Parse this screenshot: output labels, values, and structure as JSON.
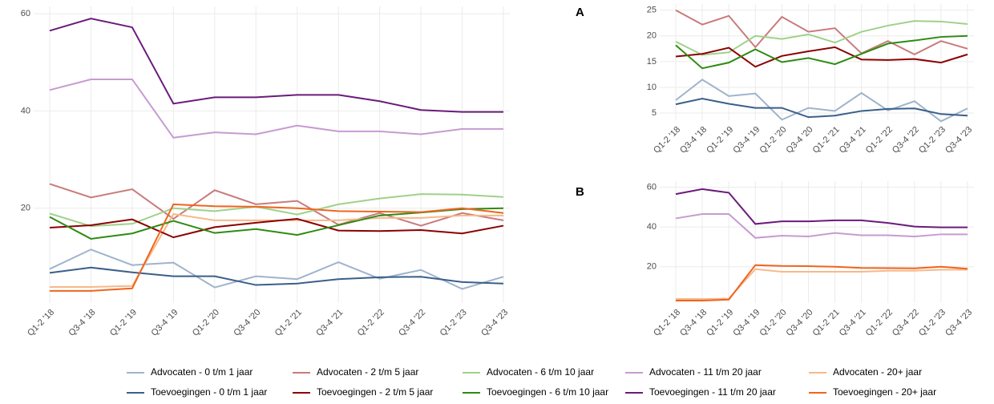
{
  "chart_data": [
    {
      "type": "line",
      "categories": [
        "Q1-2 '18",
        "Q3-4 '18",
        "Q1-2 '19",
        "Q3-4 '19",
        "Q1-2 '20",
        "Q3-4 '20",
        "Q1-2 '21",
        "Q3-4 '21",
        "Q1-2 '22",
        "Q3-4 '22",
        "Q1-2 '23",
        "Q3-4 '23"
      ],
      "ylim": [
        0.5,
        61.5
      ],
      "yticks": [
        20,
        40,
        60
      ],
      "grid": true,
      "legend": "bottom",
      "series": [
        {
          "name": "Advocaten - 0 t/m 1 jaar",
          "color": "#9fb3cc",
          "values": [
            7.5,
            11.5,
            8.3,
            8.8,
            3.7,
            6.0,
            5.4,
            8.9,
            5.5,
            7.3,
            3.4,
            5.9
          ]
        },
        {
          "name": "Advocaten - 2 t/m 5 jaar",
          "color": "#c97b7b",
          "values": [
            25,
            22.2,
            23.9,
            17.8,
            23.7,
            20.8,
            21.5,
            16.6,
            19.0,
            16.4,
            19.0,
            17.5
          ]
        },
        {
          "name": "Advocaten - 6 t/m 10 jaar",
          "color": "#9fd18a",
          "values": [
            18.9,
            16.3,
            16.8,
            20.0,
            19.4,
            20.3,
            18.7,
            20.8,
            22.0,
            22.9,
            22.8,
            22.3
          ]
        },
        {
          "name": "Advocaten - 11 t/m 20 jaar",
          "color": "#c79bd1",
          "values": [
            44.3,
            46.5,
            46.5,
            34.5,
            35.6,
            35.2,
            37.0,
            35.8,
            35.8,
            35.2,
            36.3,
            36.3
          ]
        },
        {
          "name": "Advocaten - 20+ jaar",
          "color": "#f6b98a",
          "values": [
            3.8,
            3.8,
            4.0,
            18.8,
            17.5,
            17.5,
            17.5,
            17.5,
            18.0,
            18.0,
            18.5,
            18.5
          ]
        },
        {
          "name": "Toevoegingen - 0 t/m 1 jaar",
          "color": "#3a5f8a",
          "values": [
            6.7,
            7.8,
            6.8,
            6.0,
            6.0,
            4.2,
            4.5,
            5.4,
            5.8,
            5.9,
            4.8,
            4.5
          ]
        },
        {
          "name": "Toevoegingen - 2 t/m 5 jaar",
          "color": "#8b0000",
          "values": [
            16.0,
            16.5,
            17.7,
            14.0,
            16.1,
            17.0,
            17.8,
            15.4,
            15.3,
            15.5,
            14.8,
            16.4
          ]
        },
        {
          "name": "Toevoegingen - 6 t/m 10 jaar",
          "color": "#2e8b12",
          "values": [
            18.2,
            13.7,
            14.8,
            17.4,
            14.9,
            15.7,
            14.5,
            16.5,
            18.5,
            19.1,
            19.8,
            20.0
          ]
        },
        {
          "name": "Toevoegingen - 11 t/m 20 jaar",
          "color": "#6a1b7a",
          "values": [
            56.5,
            59.0,
            57.2,
            41.5,
            42.8,
            42.8,
            43.3,
            43.3,
            42.0,
            40.2,
            39.8,
            39.8
          ]
        },
        {
          "name": "Toevoegingen - 20+ jaar",
          "color": "#f0641e",
          "values": [
            3.0,
            3.0,
            3.5,
            20.8,
            20.4,
            20.3,
            20.0,
            19.4,
            19.3,
            19.2,
            20.0,
            19.0
          ]
        }
      ]
    },
    {
      "type": "line",
      "title": "A",
      "categories": [
        "Q1-2 '18",
        "Q3-4 '18",
        "Q1-2 '19",
        "Q3-4 '19",
        "Q1-2 '20",
        "Q3-4 '20",
        "Q1-2 '21",
        "Q3-4 '21",
        "Q1-2 '22",
        "Q3-4 '22",
        "Q1-2 '23",
        "Q3-4 '23"
      ],
      "ylim": [
        3.6,
        26.2
      ],
      "yticks": [
        5,
        10,
        15,
        20,
        25
      ],
      "grid": true,
      "series": [
        {
          "color": "#9fb3cc",
          "values": [
            7.5,
            11.5,
            8.3,
            8.8,
            3.7,
            6.0,
            5.4,
            8.9,
            5.5,
            7.3,
            3.4,
            5.9
          ]
        },
        {
          "color": "#c97b7b",
          "values": [
            25,
            22.2,
            23.9,
            17.8,
            23.7,
            20.8,
            21.5,
            16.6,
            19.0,
            16.4,
            19.0,
            17.5
          ]
        },
        {
          "color": "#9fd18a",
          "values": [
            18.9,
            16.3,
            16.8,
            20.0,
            19.4,
            20.3,
            18.7,
            20.8,
            22.0,
            22.9,
            22.8,
            22.3
          ]
        },
        {
          "color": "#3a5f8a",
          "values": [
            6.7,
            7.8,
            6.8,
            6.0,
            6.0,
            4.2,
            4.5,
            5.4,
            5.8,
            5.9,
            4.8,
            4.5
          ]
        },
        {
          "color": "#8b0000",
          "values": [
            16.0,
            16.5,
            17.7,
            14.0,
            16.1,
            17.0,
            17.8,
            15.4,
            15.3,
            15.5,
            14.8,
            16.4
          ]
        },
        {
          "color": "#2e8b12",
          "values": [
            18.2,
            13.7,
            14.8,
            17.4,
            14.9,
            15.7,
            14.5,
            16.5,
            18.5,
            19.1,
            19.8,
            20.0
          ]
        }
      ]
    },
    {
      "type": "line",
      "title": "B",
      "categories": [
        "Q1-2 '18",
        "Q3-4 '18",
        "Q1-2 '19",
        "Q3-4 '19",
        "Q1-2 '20",
        "Q3-4 '20",
        "Q1-2 '21",
        "Q3-4 '21",
        "Q1-2 '22",
        "Q3-4 '22",
        "Q1-2 '23",
        "Q3-4 '23"
      ],
      "ylim": [
        1.8,
        63
      ],
      "yticks": [
        20,
        40,
        60
      ],
      "grid": true,
      "series": [
        {
          "color": "#c79bd1",
          "values": [
            44.3,
            46.5,
            46.5,
            34.5,
            35.6,
            35.2,
            37.0,
            35.8,
            35.8,
            35.2,
            36.3,
            36.3
          ]
        },
        {
          "color": "#f6b98a",
          "values": [
            3.8,
            3.8,
            4.0,
            18.8,
            17.5,
            17.5,
            17.5,
            17.5,
            18.0,
            18.0,
            18.5,
            18.5
          ]
        },
        {
          "color": "#6a1b7a",
          "values": [
            56.5,
            59.0,
            57.2,
            41.5,
            42.8,
            42.8,
            43.3,
            43.3,
            42.0,
            40.2,
            39.8,
            39.8
          ]
        },
        {
          "color": "#f0641e",
          "values": [
            3.0,
            3.0,
            3.5,
            20.8,
            20.4,
            20.3,
            20.0,
            19.4,
            19.3,
            19.2,
            20.0,
            19.0
          ]
        }
      ]
    }
  ]
}
